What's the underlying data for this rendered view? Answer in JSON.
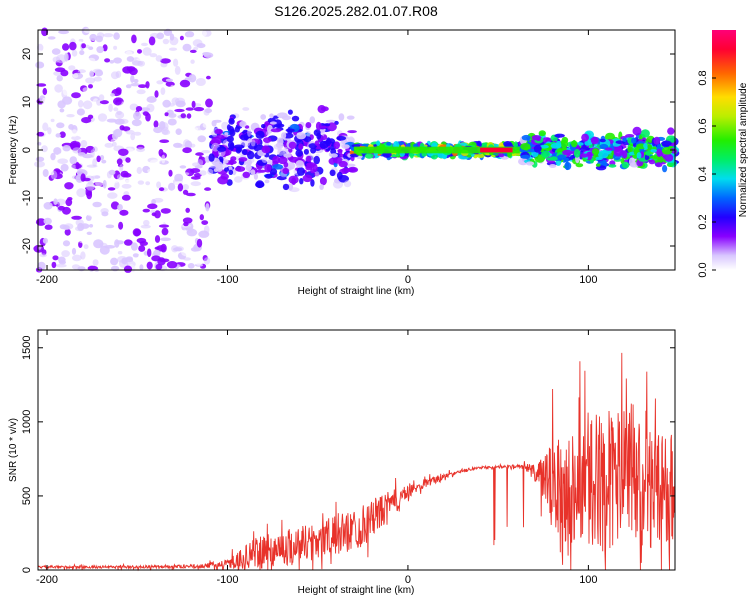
{
  "title": "S126.2025.282.01.07.R08",
  "chart_data": [
    {
      "type": "heatmap",
      "xlabel": "Height of straight line (km)",
      "ylabel": "Frequency (Hz)",
      "xlim": [
        -205,
        148
      ],
      "ylim": [
        -25,
        25
      ],
      "xticks": [
        -200,
        -100,
        0,
        100
      ],
      "xtick_labels": [
        "-200",
        "-100",
        "0",
        "100"
      ],
      "yticks": [
        -20,
        -10,
        0,
        10,
        20
      ],
      "ytick_labels": [
        "-20",
        "-10",
        "0",
        "10",
        "20"
      ],
      "colorbar": {
        "label": "Normalized spectral amplitude",
        "range": [
          0.0,
          1.0
        ],
        "ticks": [
          0.0,
          0.2,
          0.4,
          0.6,
          0.8
        ],
        "tick_labels": [
          "0.0",
          "0.2",
          "0.4",
          "0.6",
          "0.8"
        ]
      },
      "features": [
        {
          "x_range": [
            -205,
            -110
          ],
          "freq_spread": 25,
          "amplitude": 0.15,
          "description": "scattered low-amplitude noise"
        },
        {
          "x_range": [
            -110,
            -30
          ],
          "freq_spread": 9,
          "amplitude": 0.25,
          "description": "broadening band"
        },
        {
          "x_range": [
            -30,
            62
          ],
          "freq_spread": 1.5,
          "amplitude": 0.9,
          "description": "narrow strong line near 0 Hz"
        },
        {
          "x_range": [
            62,
            148
          ],
          "freq_spread": 4,
          "amplitude": 0.5,
          "description": "moderate band"
        }
      ]
    },
    {
      "type": "line",
      "xlabel": "Height of straight line (km)",
      "ylabel": "SNR (10 * v/v)",
      "xlim": [
        -205,
        148
      ],
      "ylim": [
        0,
        1620
      ],
      "xticks": [
        -200,
        -100,
        0,
        100
      ],
      "xtick_labels": [
        "-200",
        "-100",
        "0",
        "100"
      ],
      "yticks": [
        0,
        500,
        1000,
        1500
      ],
      "ytick_labels": [
        "0",
        "500",
        "1000",
        "1500"
      ],
      "series": [
        {
          "name": "SNR",
          "color": "#e8322a",
          "envelope": {
            "x": [
              -205,
              -150,
              -115,
              -100,
              -85,
              -70,
              -55,
              -40,
              -25,
              -10,
              0,
              10,
              20,
              30,
              40,
              50,
              60,
              65,
              72,
              80,
              90,
              100,
              110,
              120,
              130,
              140,
              148
            ],
            "base": [
              20,
              20,
              25,
              40,
              110,
              150,
              190,
              230,
              300,
              440,
              520,
              590,
              630,
              670,
              690,
              695,
              700,
              700,
              640,
              560,
              560,
              600,
              600,
              620,
              560,
              560,
              560
            ],
            "noise": [
              10,
              12,
              15,
              40,
              130,
              150,
              160,
              170,
              180,
              120,
              60,
              40,
              25,
              12,
              10,
              10,
              15,
              30,
              90,
              420,
              480,
              560,
              600,
              620,
              520,
              480,
              470
            ]
          }
        }
      ]
    }
  ]
}
